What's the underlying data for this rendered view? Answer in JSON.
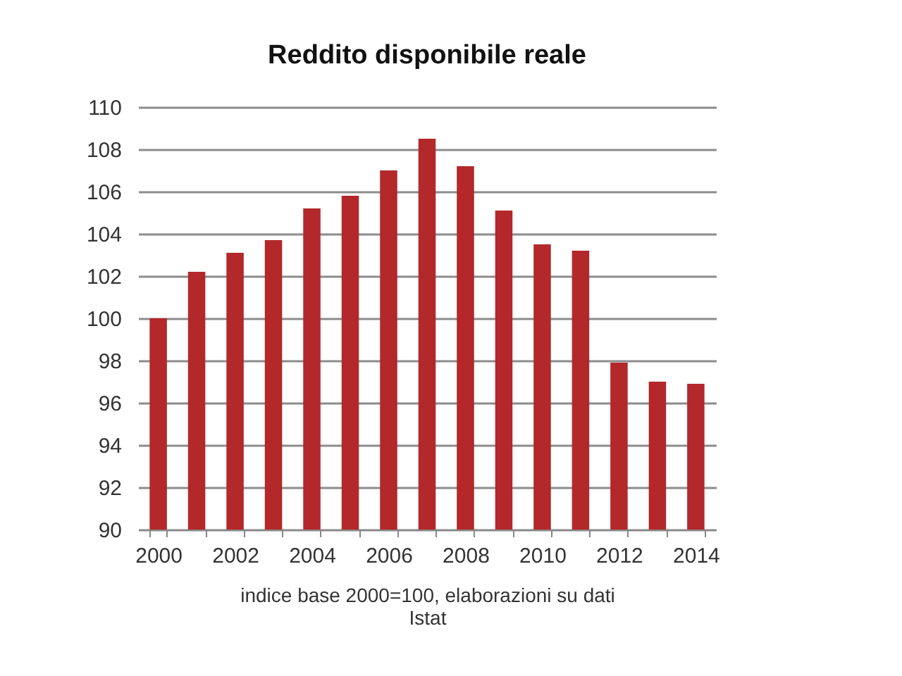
{
  "chart_data": {
    "type": "bar",
    "title": "Reddito disponibile reale",
    "xlabel": "indice base 2000=100, elaborazioni su dati Istat",
    "categories": [
      "2000",
      null,
      "2002",
      null,
      "2004",
      null,
      "2006",
      null,
      "2008",
      null,
      "2010",
      null,
      "2012",
      null,
      "2014"
    ],
    "values": [
      100,
      102.2,
      103.1,
      103.7,
      105.2,
      105.8,
      107.0,
      108.5,
      107.2,
      105.1,
      103.5,
      103.2,
      97.9,
      97.0,
      96.9
    ],
    "color": "#b3282a",
    "ylim": [
      90,
      110
    ],
    "yticks": [
      90,
      92,
      94,
      96,
      98,
      100,
      102,
      104,
      106,
      108,
      110
    ],
    "grid": "y"
  }
}
